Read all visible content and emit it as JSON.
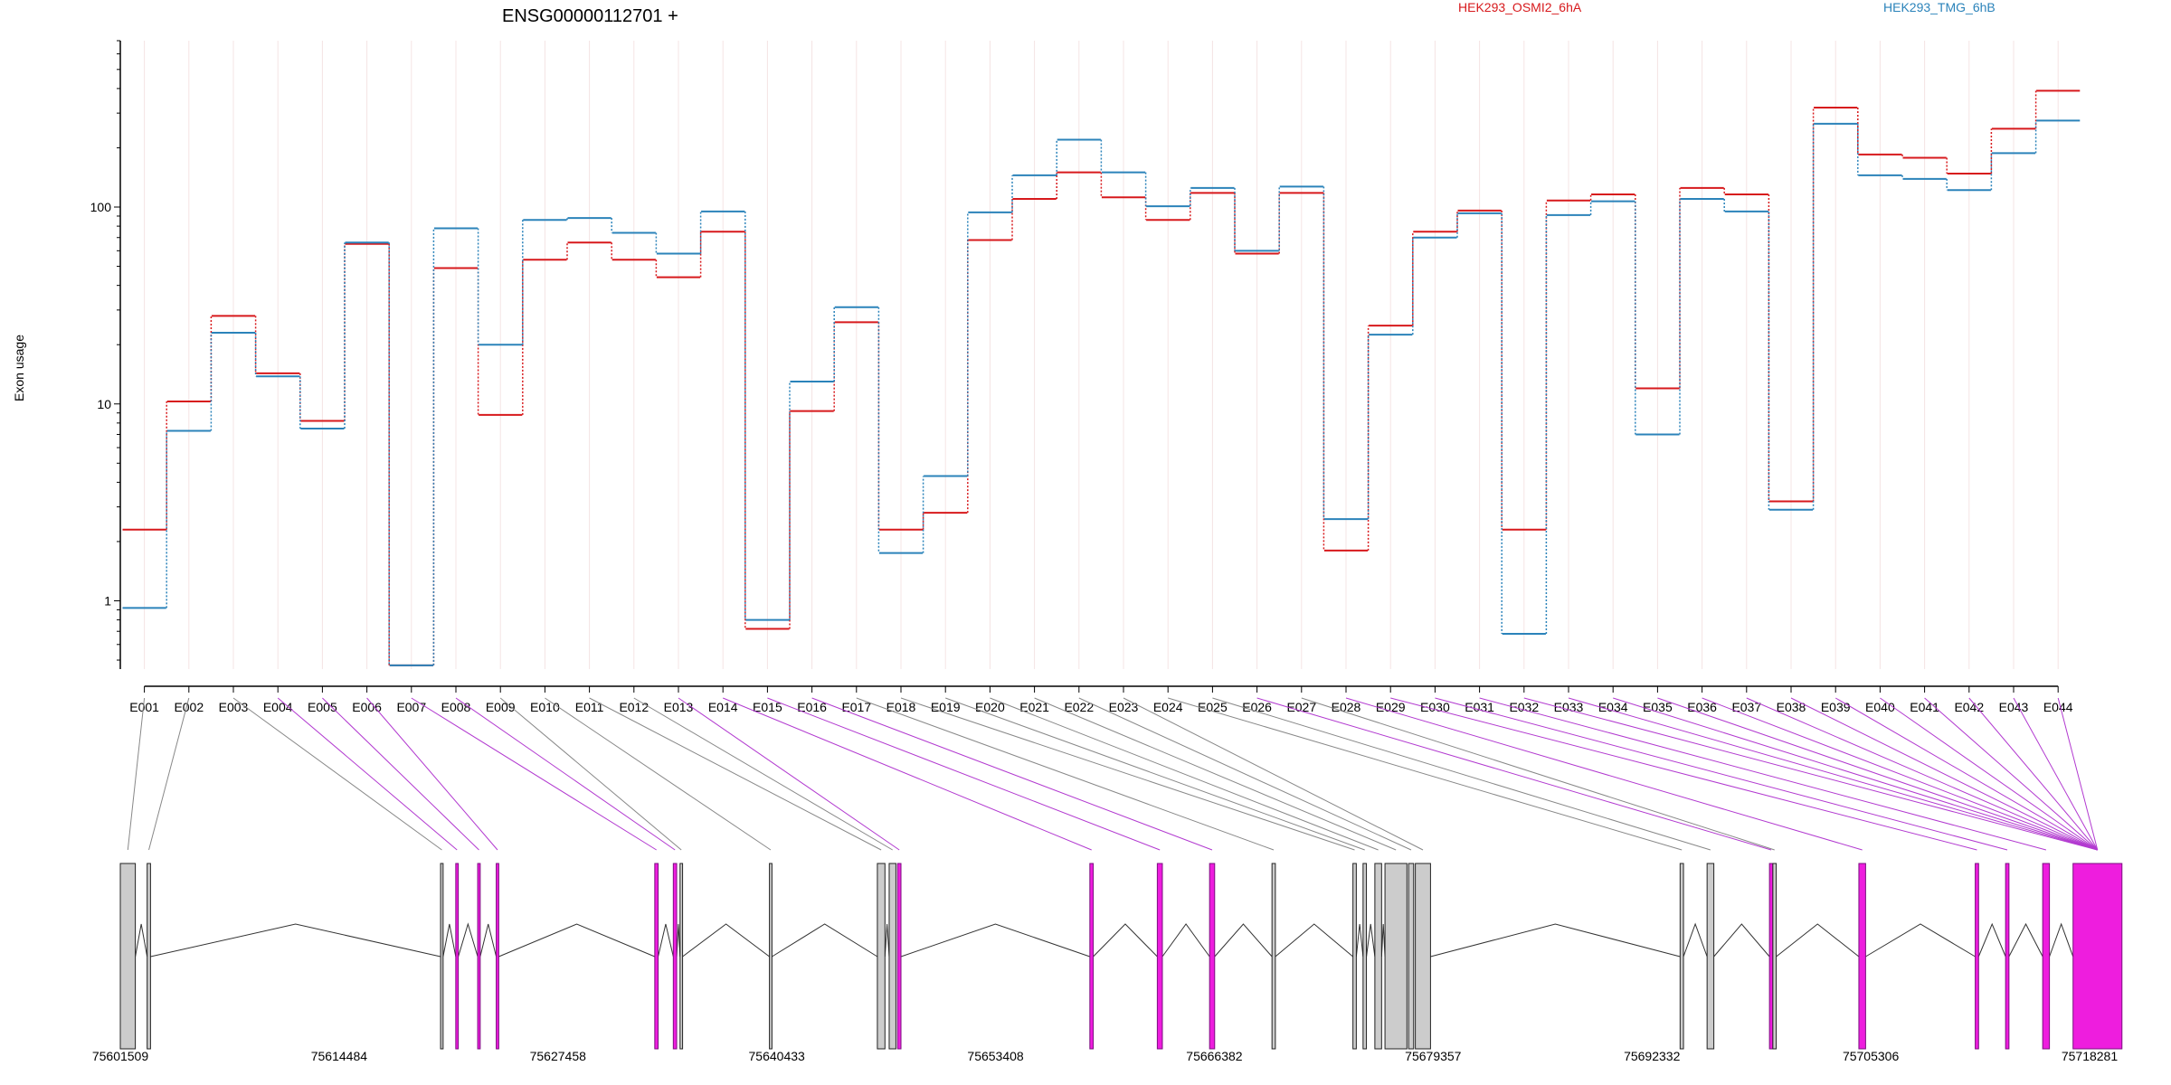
{
  "chart_data": {
    "type": "line",
    "title": "ENSG00000112701 +",
    "ylabel": "Exon usage",
    "yscale": "log",
    "yticks": [
      "1",
      "10",
      "100"
    ],
    "ylim": [
      0.45,
      700
    ],
    "grid": false,
    "legend_placement": "top",
    "categories": [
      "E001",
      "E002",
      "E003",
      "E004",
      "E005",
      "E006",
      "E007",
      "E008",
      "E009",
      "E010",
      "E011",
      "E012",
      "E013",
      "E014",
      "E015",
      "E016",
      "E017",
      "E018",
      "E019",
      "E020",
      "E021",
      "E022",
      "E023",
      "E024",
      "E025",
      "E026",
      "E027",
      "E028",
      "E029",
      "E030",
      "E031",
      "E032",
      "E033",
      "E034",
      "E035",
      "E036",
      "E037",
      "E038",
      "E039",
      "E040",
      "E041",
      "E042",
      "E043",
      "E044"
    ],
    "series": [
      {
        "name": "HEK293_OSMI2_6hA",
        "color": "#d7191c",
        "values": [
          2.3,
          10.3,
          28,
          14.3,
          8.2,
          65,
          0.47,
          49,
          8.8,
          54,
          66,
          54,
          44,
          75,
          0.72,
          9.2,
          26,
          2.3,
          2.8,
          68,
          110,
          150,
          112,
          86,
          118,
          58,
          118,
          1.8,
          25,
          75,
          96,
          2.3,
          108,
          116,
          12,
          125,
          116,
          3.2,
          320,
          185,
          178,
          148,
          250,
          390
        ]
      },
      {
        "name": "HEK293_TMG_6hB",
        "color": "#2b83ba",
        "values": [
          0.92,
          7.3,
          23,
          13.8,
          7.5,
          66,
          0.47,
          78,
          20,
          86,
          88,
          74,
          58,
          95,
          0.8,
          13,
          31,
          1.75,
          4.3,
          94,
          145,
          220,
          150,
          101,
          125,
          60,
          127,
          2.6,
          22.5,
          70,
          93,
          0.68,
          91,
          107,
          7,
          110,
          95,
          2.9,
          265,
          145,
          139,
          122,
          188,
          275
        ]
      }
    ],
    "exon_track": {
      "coordinates": [
        "75601509",
        "75614484",
        "75627458",
        "75640433",
        "75653408",
        "75666382",
        "75679357",
        "75692332",
        "75705306",
        "75718281"
      ],
      "exons": [
        {
          "start": 75601509,
          "end": 75602400,
          "highlight": false
        },
        {
          "start": 75603100,
          "end": 75603300,
          "highlight": false
        },
        {
          "start": 75620500,
          "end": 75620650,
          "highlight": false
        },
        {
          "start": 75621400,
          "end": 75621550,
          "highlight": true
        },
        {
          "start": 75622700,
          "end": 75622850,
          "highlight": true
        },
        {
          "start": 75623800,
          "end": 75623950,
          "highlight": true
        },
        {
          "start": 75633200,
          "end": 75633400,
          "highlight": true
        },
        {
          "start": 75634300,
          "end": 75634500,
          "highlight": true
        },
        {
          "start": 75634700,
          "end": 75634850,
          "highlight": false
        },
        {
          "start": 75640000,
          "end": 75640150,
          "highlight": false
        },
        {
          "start": 75646400,
          "end": 75646850,
          "highlight": false
        },
        {
          "start": 75647100,
          "end": 75647500,
          "highlight": false
        },
        {
          "start": 75647600,
          "end": 75647800,
          "highlight": true
        },
        {
          "start": 75659000,
          "end": 75659200,
          "highlight": true
        },
        {
          "start": 75663000,
          "end": 75663300,
          "highlight": true
        },
        {
          "start": 75666100,
          "end": 75666400,
          "highlight": true
        },
        {
          "start": 75669800,
          "end": 75670000,
          "highlight": false
        },
        {
          "start": 75674600,
          "end": 75674800,
          "highlight": false
        },
        {
          "start": 75675200,
          "end": 75675400,
          "highlight": false
        },
        {
          "start": 75675900,
          "end": 75676300,
          "highlight": false
        },
        {
          "start": 75676500,
          "end": 75677800,
          "highlight": false
        },
        {
          "start": 75677900,
          "end": 75678200,
          "highlight": false
        },
        {
          "start": 75678300,
          "end": 75679200,
          "highlight": false
        },
        {
          "start": 75694000,
          "end": 75694200,
          "highlight": false
        },
        {
          "start": 75695600,
          "end": 75696000,
          "highlight": false
        },
        {
          "start": 75699300,
          "end": 75699500,
          "highlight": true
        },
        {
          "start": 75699500,
          "end": 75699700,
          "highlight": false
        },
        {
          "start": 75704600,
          "end": 75705000,
          "highlight": true
        },
        {
          "start": 75711500,
          "end": 75711700,
          "highlight": true
        },
        {
          "start": 75713300,
          "end": 75713500,
          "highlight": true
        },
        {
          "start": 75715500,
          "end": 75715900,
          "highlight": true
        },
        {
          "start": 75717300,
          "end": 75720200,
          "highlight": true
        }
      ]
    }
  }
}
